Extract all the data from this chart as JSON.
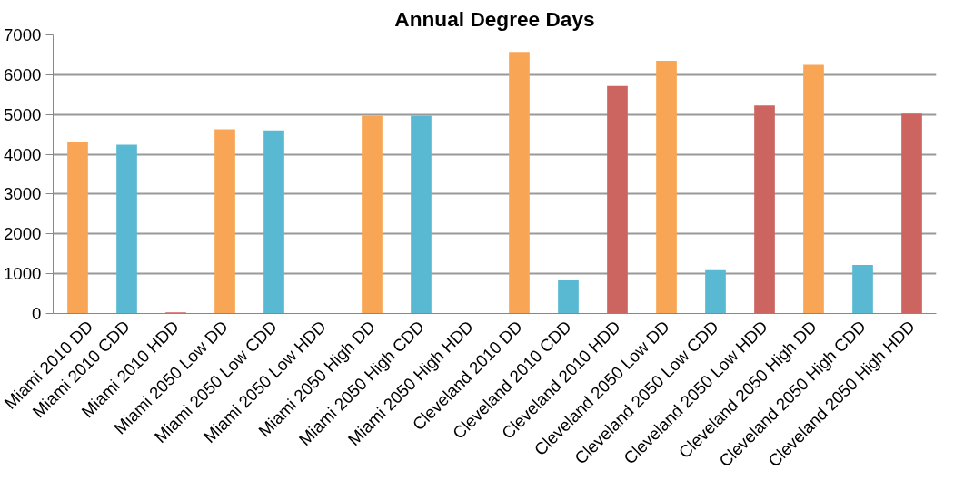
{
  "chart_data": {
    "type": "bar",
    "title": "Annual Degree Days",
    "categories": [
      "Miami 2010 DD",
      "Miami 2010 CDD",
      "Miami 2010 HDD",
      "Miami 2050 Low DD",
      "Miami 2050 Low CDD",
      "Miami 2050 Low HDD",
      "Miami 2050 High DD",
      "Miami 2050 High CDD",
      "Miami 2050 High HDD",
      "Cleveland 2010 DD",
      "Cleveland 2010 CDD",
      "Cleveland 2010 HDD",
      "Cleveland 2050 Low DD",
      "Cleveland 2050 Low CDD",
      "Cleveland 2050 Low HDD",
      "Cleveland 2050 High DD",
      "Cleveland 2050 High CDD",
      "Cleveland 2050 High HDD"
    ],
    "values": [
      4300,
      4240,
      30,
      4630,
      4600,
      0,
      4970,
      4970,
      0,
      6570,
      830,
      5720,
      6350,
      1090,
      5230,
      6250,
      1220,
      5020
    ],
    "colors": [
      "#f8a655",
      "#5ab9d2",
      "#cc6560",
      "#f8a655",
      "#5ab9d2",
      "#cc6560",
      "#f8a655",
      "#5ab9d2",
      "#cc6560",
      "#f8a655",
      "#5ab9d2",
      "#cc6560",
      "#f8a655",
      "#5ab9d2",
      "#cc6560",
      "#f8a655",
      "#5ab9d2",
      "#cc6560"
    ],
    "ylim": [
      0,
      7000
    ],
    "yticks": [
      0,
      1000,
      2000,
      3000,
      4000,
      5000,
      6000,
      7000
    ],
    "grid": "y"
  }
}
